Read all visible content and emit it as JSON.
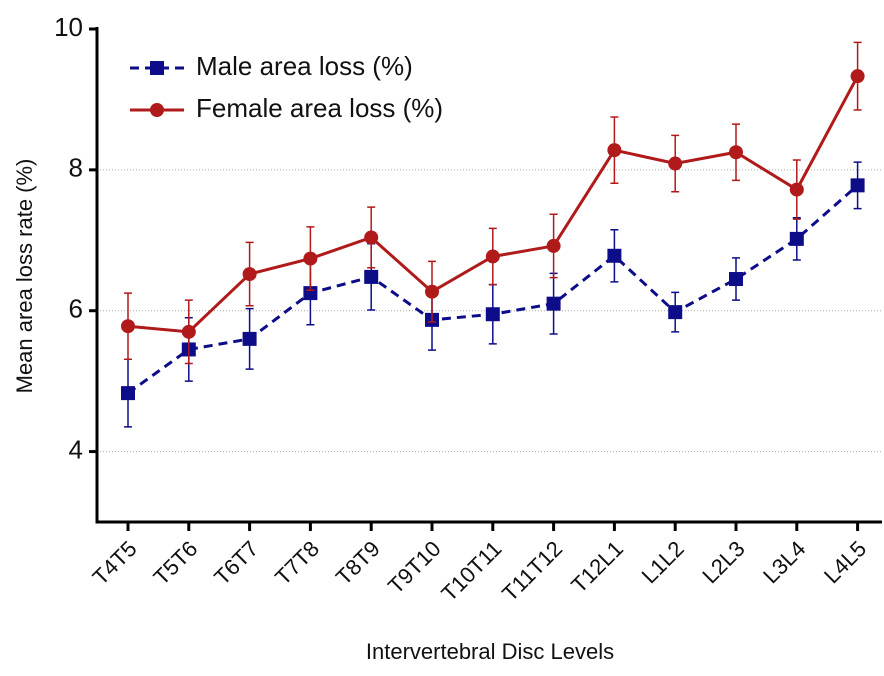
{
  "chart_data": {
    "type": "line",
    "x_label": "Intervertebral Disc Levels",
    "y_label": "Mean area loss rate (%)",
    "categories": [
      "T4T5",
      "T5T6",
      "T6T7",
      "T7T8",
      "T8T9",
      "T9T10",
      "T10T11",
      "T11T12",
      "T12L1",
      "L1L2",
      "L2L3",
      "L3L4",
      "L4L5"
    ],
    "series": [
      {
        "name": "Male area loss (%)",
        "color": "#0d0d8a",
        "line_style": "dashed",
        "marker": "square",
        "values": [
          4.83,
          5.45,
          5.6,
          6.25,
          6.48,
          5.87,
          5.95,
          6.1,
          6.78,
          5.98,
          6.45,
          7.02,
          7.78
        ],
        "errors": [
          0.48,
          0.45,
          0.43,
          0.45,
          0.47,
          0.43,
          0.42,
          0.43,
          0.37,
          0.28,
          0.3,
          0.3,
          0.33
        ]
      },
      {
        "name": "Female area loss (%)",
        "color": "#b01a1a",
        "line_style": "solid",
        "marker": "circle",
        "values": [
          5.78,
          5.7,
          6.52,
          6.74,
          7.04,
          6.27,
          6.77,
          6.92,
          8.28,
          8.09,
          8.25,
          7.72,
          9.33
        ],
        "errors": [
          0.47,
          0.45,
          0.45,
          0.45,
          0.43,
          0.43,
          0.4,
          0.45,
          0.47,
          0.4,
          0.4,
          0.42,
          0.48
        ]
      }
    ],
    "ylim": [
      3,
      10
    ],
    "yticks": [
      4,
      6,
      8,
      10
    ],
    "grid": true,
    "legend": "top-left"
  }
}
